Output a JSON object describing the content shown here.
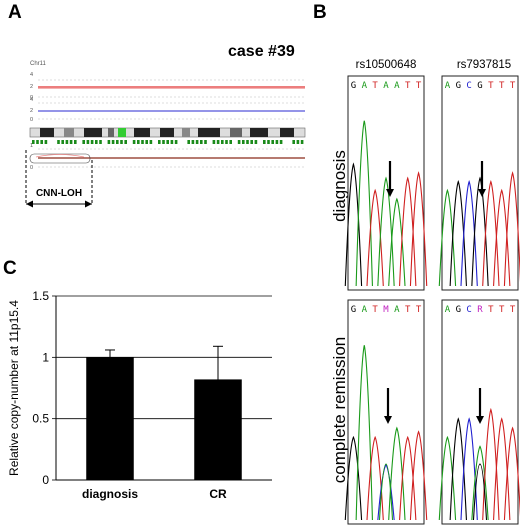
{
  "panels": {
    "a": "A",
    "b": "B",
    "c": "C"
  },
  "panel_a": {
    "case_label": "case #39",
    "chrom_label": "Chr11",
    "track_ticks": [
      "4",
      "2",
      "0",
      "4",
      "2",
      "0",
      "1",
      "0"
    ],
    "region_label": "CNN-LOH",
    "colors": {
      "top_track": "#e03030",
      "mid_track": "#2a2ad0",
      "bottom_track": "#8b2a1a",
      "snp_marks": "#1a8a1a"
    }
  },
  "panel_b": {
    "snps": [
      {
        "id": "rs10500648",
        "diagnosis_seq": [
          "G",
          "A",
          "T",
          "A",
          "A",
          "T",
          "T"
        ],
        "remission_seq": [
          "G",
          "A",
          "T",
          "M",
          "A",
          "T",
          "T"
        ]
      },
      {
        "id": "rs7937815",
        "diagnosis_seq": [
          "A",
          "G",
          "C",
          "G",
          "T",
          "T",
          "T"
        ],
        "remission_seq": [
          "A",
          "G",
          "C",
          "R",
          "T",
          "T",
          "T"
        ]
      }
    ],
    "row_labels": [
      "diagnosis",
      "complete remission"
    ],
    "base_colors": {
      "A": "#1a9a1a",
      "C": "#2020d0",
      "G": "#000000",
      "T": "#d02020",
      "M": "#c020c0",
      "R": "#c020c0"
    }
  },
  "chart_data": {
    "type": "bar",
    "categories": [
      "diagnosis",
      "CR"
    ],
    "values": [
      1.0,
      0.82
    ],
    "errors": [
      0.06,
      0.27
    ],
    "ylabel": "Relative copy-number at 11p15.4",
    "ylim": [
      0,
      1.5
    ],
    "yticks": [
      "0",
      "0.5",
      "1",
      "1.5"
    ],
    "grid": true,
    "bar_color": "#000000"
  }
}
